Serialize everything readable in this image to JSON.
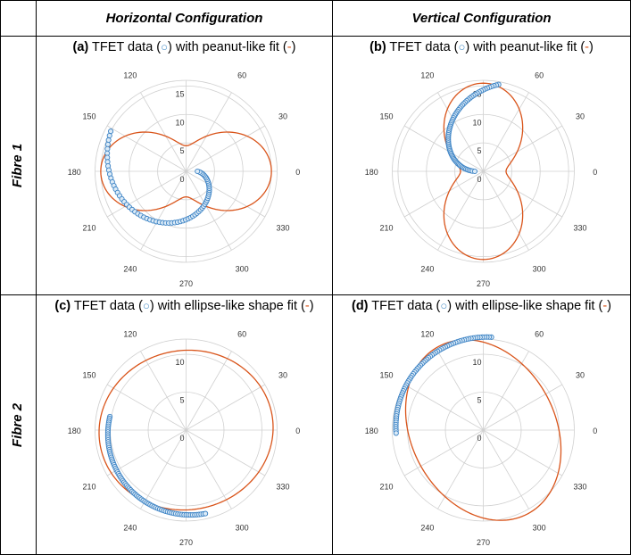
{
  "headers": {
    "col1": "Horizontal Configuration",
    "col2": "Vertical Configuration",
    "row1": "Fibre 1",
    "row2": "Fibre 2"
  },
  "colors": {
    "data": "#3b82c4",
    "fit": "#d9541a",
    "grid": "#d0d0d0",
    "tick": "#333333"
  },
  "chart_data": [
    {
      "id": "a",
      "type": "polar-scatter-line",
      "title": {
        "label": "(a)",
        "pre": " TFET data (",
        "marker": "○",
        "mid": ") with peanut-like fit (",
        "fit": "-",
        "post": ")"
      },
      "rlim": [
        0,
        16
      ],
      "rticks": [
        5,
        10,
        15
      ],
      "theta_ticks": [
        0,
        30,
        60,
        90,
        120,
        150,
        180,
        210,
        240,
        270,
        300,
        330
      ],
      "fit": {
        "shape": "peanut",
        "orientation_deg": 0,
        "r_max": 15,
        "r_min": 4.5
      },
      "data": {
        "theta_start": 152,
        "theta_end": 360,
        "r_start": 15,
        "r_end": 2.0,
        "points": 70
      }
    },
    {
      "id": "b",
      "type": "polar-scatter-line",
      "title": {
        "label": "(b)",
        "pre": " TFET data (",
        "marker": "○",
        "mid": ") with peanut-like fit (",
        "fit": "-",
        "post": ")"
      },
      "rlim": [
        0,
        16
      ],
      "rticks": [
        5,
        10,
        15
      ],
      "theta_ticks": [
        0,
        30,
        60,
        90,
        120,
        150,
        180,
        210,
        240,
        270,
        300,
        330
      ],
      "fit": {
        "shape": "peanut",
        "orientation_deg": 90,
        "r_max": 15.5,
        "r_min": 4
      },
      "data": {
        "theta_start": 80,
        "theta_end": 180,
        "r_start": 15.5,
        "r_end": 1.5,
        "points": 70
      }
    },
    {
      "id": "c",
      "type": "polar-scatter-line",
      "title": {
        "label": "(c)",
        "pre": " TFET data (",
        "marker": "○",
        "mid": ") with ellipse-like shape fit (",
        "fit": "-",
        "post": ")"
      },
      "rlim": [
        0,
        12
      ],
      "rticks": [
        5,
        10
      ],
      "theta_ticks": [
        0,
        30,
        60,
        90,
        120,
        150,
        180,
        210,
        240,
        270,
        300,
        330
      ],
      "fit": {
        "shape": "ellipse",
        "a": 11.5,
        "b": 10.5,
        "phi_deg": 10
      },
      "data": {
        "theta_start": 170,
        "theta_end": 283,
        "r_start": 10.2,
        "r_end": 11.3,
        "points": 80
      }
    },
    {
      "id": "d",
      "type": "polar-scatter-line",
      "title": {
        "label": "(d)",
        "pre": " TFET data (",
        "marker": "○",
        "mid": ") with ellipse-like shape fit (",
        "fit": "-",
        "post": ")"
      },
      "rlim": [
        0,
        12
      ],
      "rticks": [
        5,
        10
      ],
      "theta_ticks": [
        0,
        30,
        60,
        90,
        120,
        150,
        180,
        210,
        240,
        270,
        300,
        330
      ],
      "fit": {
        "shape": "ellipse",
        "a": 12.5,
        "b": 9.5,
        "phi_deg": 118
      },
      "data": {
        "theta_start": 85,
        "theta_end": 182,
        "r_start": 12.3,
        "r_end": 11.5,
        "points": 70
      }
    }
  ]
}
